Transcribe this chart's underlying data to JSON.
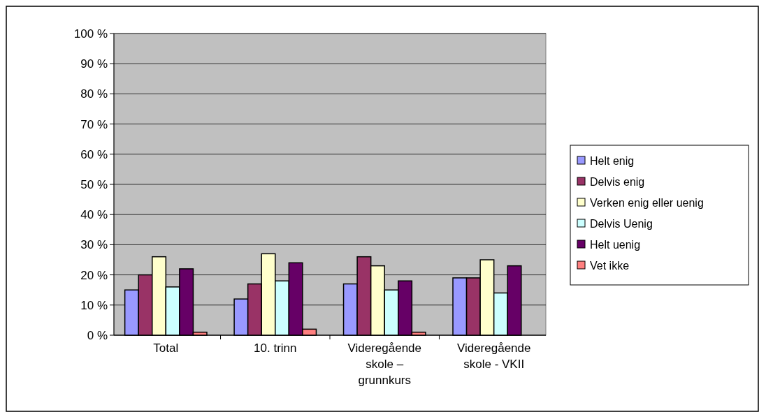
{
  "chart_data": {
    "type": "bar",
    "categories": [
      "Total",
      "10. trinn",
      "Videregående skole – grunnkurs",
      "Videregående skole - VKII"
    ],
    "series": [
      {
        "name": "Helt enig",
        "color": "#9999ff",
        "values": [
          15,
          12,
          17,
          19
        ]
      },
      {
        "name": "Delvis enig",
        "color": "#993366",
        "values": [
          20,
          17,
          26,
          19
        ]
      },
      {
        "name": "Verken enig eller uenig",
        "color": "#ffffcc",
        "values": [
          26,
          27,
          23,
          25
        ]
      },
      {
        "name": "Delvis Uenig",
        "color": "#ccffff",
        "values": [
          16,
          18,
          15,
          14
        ]
      },
      {
        "name": "Helt uenig",
        "color": "#660066",
        "values": [
          22,
          24,
          18,
          23
        ]
      },
      {
        "name": "Vet ikke",
        "color": "#ff8080",
        "values": [
          1,
          2,
          1,
          0
        ]
      }
    ],
    "ylim": [
      0,
      100
    ],
    "yticks": [
      {
        "value": 0,
        "label": "0 %"
      },
      {
        "value": 10,
        "label": "10 %"
      },
      {
        "value": 20,
        "label": "20 %"
      },
      {
        "value": 30,
        "label": "30 %"
      },
      {
        "value": 40,
        "label": "40 %"
      },
      {
        "value": 50,
        "label": "50 %"
      },
      {
        "value": 60,
        "label": "60 %"
      },
      {
        "value": 70,
        "label": "70 %"
      },
      {
        "value": 80,
        "label": "80 %"
      },
      {
        "value": 90,
        "label": "90 %"
      },
      {
        "value": 100,
        "label": "100 %"
      }
    ],
    "grid": "y",
    "legend": "right"
  }
}
